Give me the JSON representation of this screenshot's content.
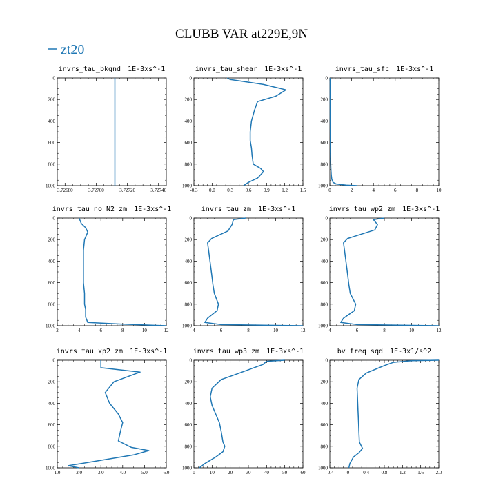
{
  "figure": {
    "title": "CLUBB VAR at229E,9N",
    "legend_label": "zt20",
    "series_color": "#1f77b4"
  },
  "chart_data": [
    {
      "type": "line",
      "title": "invrs_tau_bkgnd",
      "units": "1E-3xs^-1",
      "xlim": [
        3.72675,
        3.72745
      ],
      "ylim": [
        1000,
        0
      ],
      "xticks": [
        "3.72680",
        "3.72700",
        "3.72720",
        "3.72740"
      ],
      "yticks": [
        "0",
        "200",
        "400",
        "600",
        "800",
        "1000"
      ],
      "series": [
        {
          "name": "zt20",
          "x": [
            3.72712,
            3.72712
          ],
          "y": [
            0,
            1000
          ]
        }
      ]
    },
    {
      "type": "line",
      "title": "invrs_tau_shear",
      "units": "1E-3xs^-1",
      "xlim": [
        -0.3,
        1.5
      ],
      "ylim": [
        1000,
        0
      ],
      "xticks": [
        "-0.3",
        "0.0",
        "0.3",
        "0.6",
        "0.9",
        "1.2",
        "1.5"
      ],
      "yticks": [
        "0",
        "200",
        "400",
        "600",
        "800",
        "1000"
      ],
      "series": [
        {
          "name": "zt20",
          "x": [
            0.25,
            0.3,
            0.85,
            1.22,
            1.05,
            0.75,
            0.7,
            0.65,
            0.63,
            0.63,
            0.65,
            0.66,
            0.68,
            0.8,
            0.85,
            0.75,
            0.6,
            0.52
          ],
          "y": [
            0,
            15,
            60,
            110,
            170,
            220,
            300,
            400,
            500,
            580,
            650,
            720,
            800,
            840,
            870,
            930,
            970,
            1000
          ]
        }
      ]
    },
    {
      "type": "line",
      "title": "invrs_tau_sfc",
      "units": "1E-3xs^-1",
      "xlim": [
        0,
        10
      ],
      "ylim": [
        1000,
        0
      ],
      "xticks": [
        "0",
        "2",
        "4",
        "6",
        "8",
        "10"
      ],
      "yticks": [
        "0",
        "200",
        "400",
        "600",
        "800",
        "1000"
      ],
      "series": [
        {
          "name": "zt20",
          "x": [
            0.03,
            0.03,
            0.04,
            0.05,
            0.06,
            0.08,
            0.1,
            0.13,
            0.18,
            0.3,
            0.6,
            1.5,
            2.5
          ],
          "y": [
            0,
            200,
            400,
            600,
            700,
            800,
            850,
            900,
            940,
            970,
            985,
            995,
            1000
          ]
        }
      ]
    },
    {
      "type": "line",
      "title": "invrs_tau_no_N2_zm",
      "units": "1E-3xs^-1",
      "xlim": [
        2,
        12
      ],
      "ylim": [
        1000,
        0
      ],
      "xticks": [
        "2",
        "4",
        "6",
        "8",
        "10",
        "12"
      ],
      "yticks": [
        "0",
        "200",
        "400",
        "600",
        "800",
        "1000"
      ],
      "series": [
        {
          "name": "zt20",
          "x": [
            4.0,
            4.2,
            4.6,
            4.8,
            4.5,
            4.4,
            4.4,
            4.4,
            4.4,
            4.5,
            4.5,
            4.6,
            4.6,
            4.8,
            8.0,
            12.0
          ],
          "y": [
            0,
            50,
            90,
            130,
            200,
            300,
            400,
            500,
            600,
            700,
            800,
            850,
            920,
            970,
            985,
            1000
          ]
        }
      ]
    },
    {
      "type": "line",
      "title": "invrs_tau_zm",
      "units": "1E-3xs^-1",
      "xlim": [
        4,
        12
      ],
      "ylim": [
        1000,
        0
      ],
      "xticks": [
        "4",
        "6",
        "8",
        "10",
        "12"
      ],
      "yticks": [
        "0",
        "200",
        "400",
        "600",
        "800",
        "1000"
      ],
      "series": [
        {
          "name": "zt20",
          "x": [
            7.8,
            6.9,
            6.8,
            6.5,
            5.3,
            5.0,
            5.1,
            5.2,
            5.3,
            5.4,
            5.5,
            5.8,
            5.7,
            5.0,
            4.8,
            6.0,
            12.0
          ],
          "y": [
            0,
            15,
            60,
            120,
            190,
            230,
            320,
            420,
            520,
            620,
            700,
            800,
            860,
            930,
            970,
            990,
            1000
          ]
        }
      ]
    },
    {
      "type": "line",
      "title": "invrs_tau_wp2_zm",
      "units": "1E-3xs^-1",
      "xlim": [
        4,
        12
      ],
      "ylim": [
        1000,
        0
      ],
      "xticks": [
        "4",
        "6",
        "8",
        "10",
        "12"
      ],
      "yticks": [
        "0",
        "200",
        "400",
        "600",
        "800",
        "1000"
      ],
      "series": [
        {
          "name": "zt20",
          "x": [
            8.0,
            7.2,
            7.5,
            7.3,
            5.3,
            5.0,
            5.1,
            5.2,
            5.3,
            5.4,
            5.5,
            5.9,
            5.8,
            5.0,
            4.8,
            6.0,
            12.0
          ],
          "y": [
            0,
            15,
            60,
            110,
            190,
            230,
            320,
            420,
            520,
            620,
            700,
            800,
            860,
            930,
            970,
            990,
            1000
          ]
        }
      ]
    },
    {
      "type": "line",
      "title": "invrs_tau_xp2_zm",
      "units": "1E-3xs^-1",
      "xlim": [
        1.0,
        6.0
      ],
      "ylim": [
        1000,
        0
      ],
      "xticks": [
        "1.0",
        "2.0",
        "3.0",
        "4.0",
        "5.0",
        "6.0"
      ],
      "yticks": [
        "0",
        "200",
        "400",
        "600",
        "800",
        "1000"
      ],
      "series": [
        {
          "name": "zt20",
          "x": [
            3.0,
            3.0,
            4.8,
            3.6,
            3.2,
            3.4,
            3.8,
            4.0,
            3.9,
            3.8,
            4.4,
            5.2,
            4.5,
            3.0,
            1.5,
            2.0
          ],
          "y": [
            0,
            70,
            110,
            200,
            300,
            400,
            500,
            580,
            660,
            750,
            810,
            840,
            880,
            930,
            980,
            1000
          ]
        }
      ]
    },
    {
      "type": "line",
      "title": "invrs_tau_wp3_zm",
      "units": "1E-3xs^-1",
      "xlim": [
        0,
        60
      ],
      "ylim": [
        1000,
        0
      ],
      "xticks": [
        "0",
        "10",
        "20",
        "30",
        "40",
        "50",
        "60"
      ],
      "yticks": [
        "0",
        "200",
        "400",
        "600",
        "800",
        "1000"
      ],
      "series": [
        {
          "name": "zt20",
          "x": [
            50,
            40,
            38,
            25,
            15,
            10,
            9,
            10,
            12,
            14,
            15,
            16,
            17,
            16,
            12,
            6,
            3
          ],
          "y": [
            0,
            10,
            40,
            120,
            180,
            260,
            340,
            420,
            500,
            580,
            660,
            760,
            800,
            850,
            900,
            960,
            1000
          ]
        }
      ]
    },
    {
      "type": "line",
      "title": "bv_freq_sqd",
      "units": "1E-3x1/s^2",
      "xlim": [
        -0.4,
        2.0
      ],
      "ylim": [
        1000,
        0
      ],
      "xticks": [
        "-0.4",
        "0",
        "0.4",
        "0.8",
        "1.2",
        "1.6",
        "2.0"
      ],
      "yticks": [
        "0",
        "200",
        "400",
        "600",
        "800",
        "1000"
      ],
      "series": [
        {
          "name": "zt20",
          "x": [
            2.0,
            1.4,
            1.0,
            0.8,
            0.4,
            0.24,
            0.2,
            0.21,
            0.22,
            0.23,
            0.24,
            0.25,
            0.32,
            0.24,
            0.12,
            0.04,
            0.02
          ],
          "y": [
            0,
            5,
            20,
            50,
            120,
            180,
            260,
            360,
            460,
            560,
            660,
            760,
            820,
            860,
            900,
            960,
            1000
          ]
        }
      ]
    }
  ]
}
